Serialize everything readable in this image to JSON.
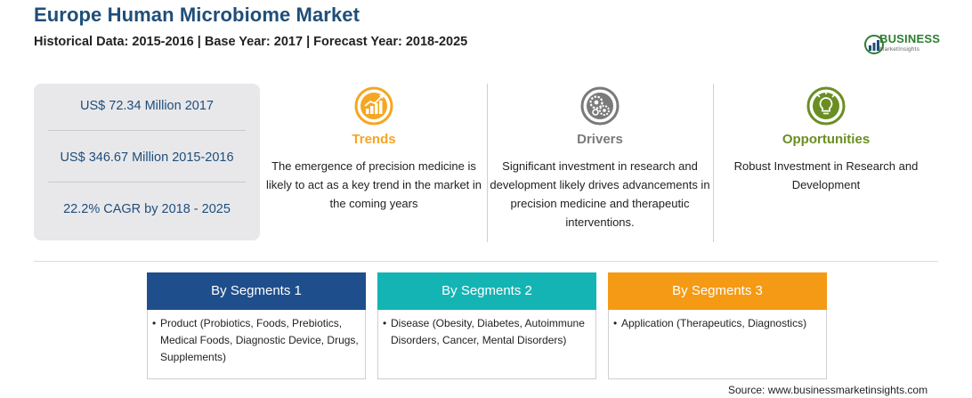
{
  "header": {
    "title": "Europe Human Microbiome Market",
    "subtitle": "Historical Data: 2015-2016 | Base Year: 2017 | Forecast Year: 2018-2025"
  },
  "logo": {
    "name": "BUSINESS",
    "tagline": "MarketInsights",
    "icon": "logo-mark-icon"
  },
  "stats": [
    "US$ 72.34 Million 2017",
    "US$ 346.67 Million 2015-2016",
    "22.2% CAGR by 2018 - 2025"
  ],
  "highlights": {
    "trends": {
      "title": "Trends",
      "text": "The emergence of precision medicine is likely to act as a key trend in the market in the coming years",
      "color": "#f5a623",
      "icon": "growth-chart-icon"
    },
    "drivers": {
      "title": "Drivers",
      "text": "Significant investment in research and development likely drives advancements in precision medicine and therapeutic interventions.",
      "color": "#7a7a7a",
      "icon": "gears-icon"
    },
    "opportunities": {
      "title": "Opportunities",
      "text": "Robust Investment in Research and Development",
      "color": "#6b8e23",
      "icon": "lightbulb-icon"
    }
  },
  "segments": [
    {
      "title": "By Segments 1",
      "text": "Product (Probiotics, Foods, Prebiotics, Medical Foods, Diagnostic Device, Drugs, Supplements)",
      "color": "#1f4e8c"
    },
    {
      "title": "By Segments 2",
      "text": "Disease (Obesity, Diabetes, Autoimmune Disorders, Cancer, Mental Disorders)",
      "color": "#14b4b4"
    },
    {
      "title": "By Segments 3",
      "text": "Application (Therapeutics, Diagnostics)",
      "color": "#f59a14"
    }
  ],
  "source": "Source: www.businessmarketinsights.com"
}
